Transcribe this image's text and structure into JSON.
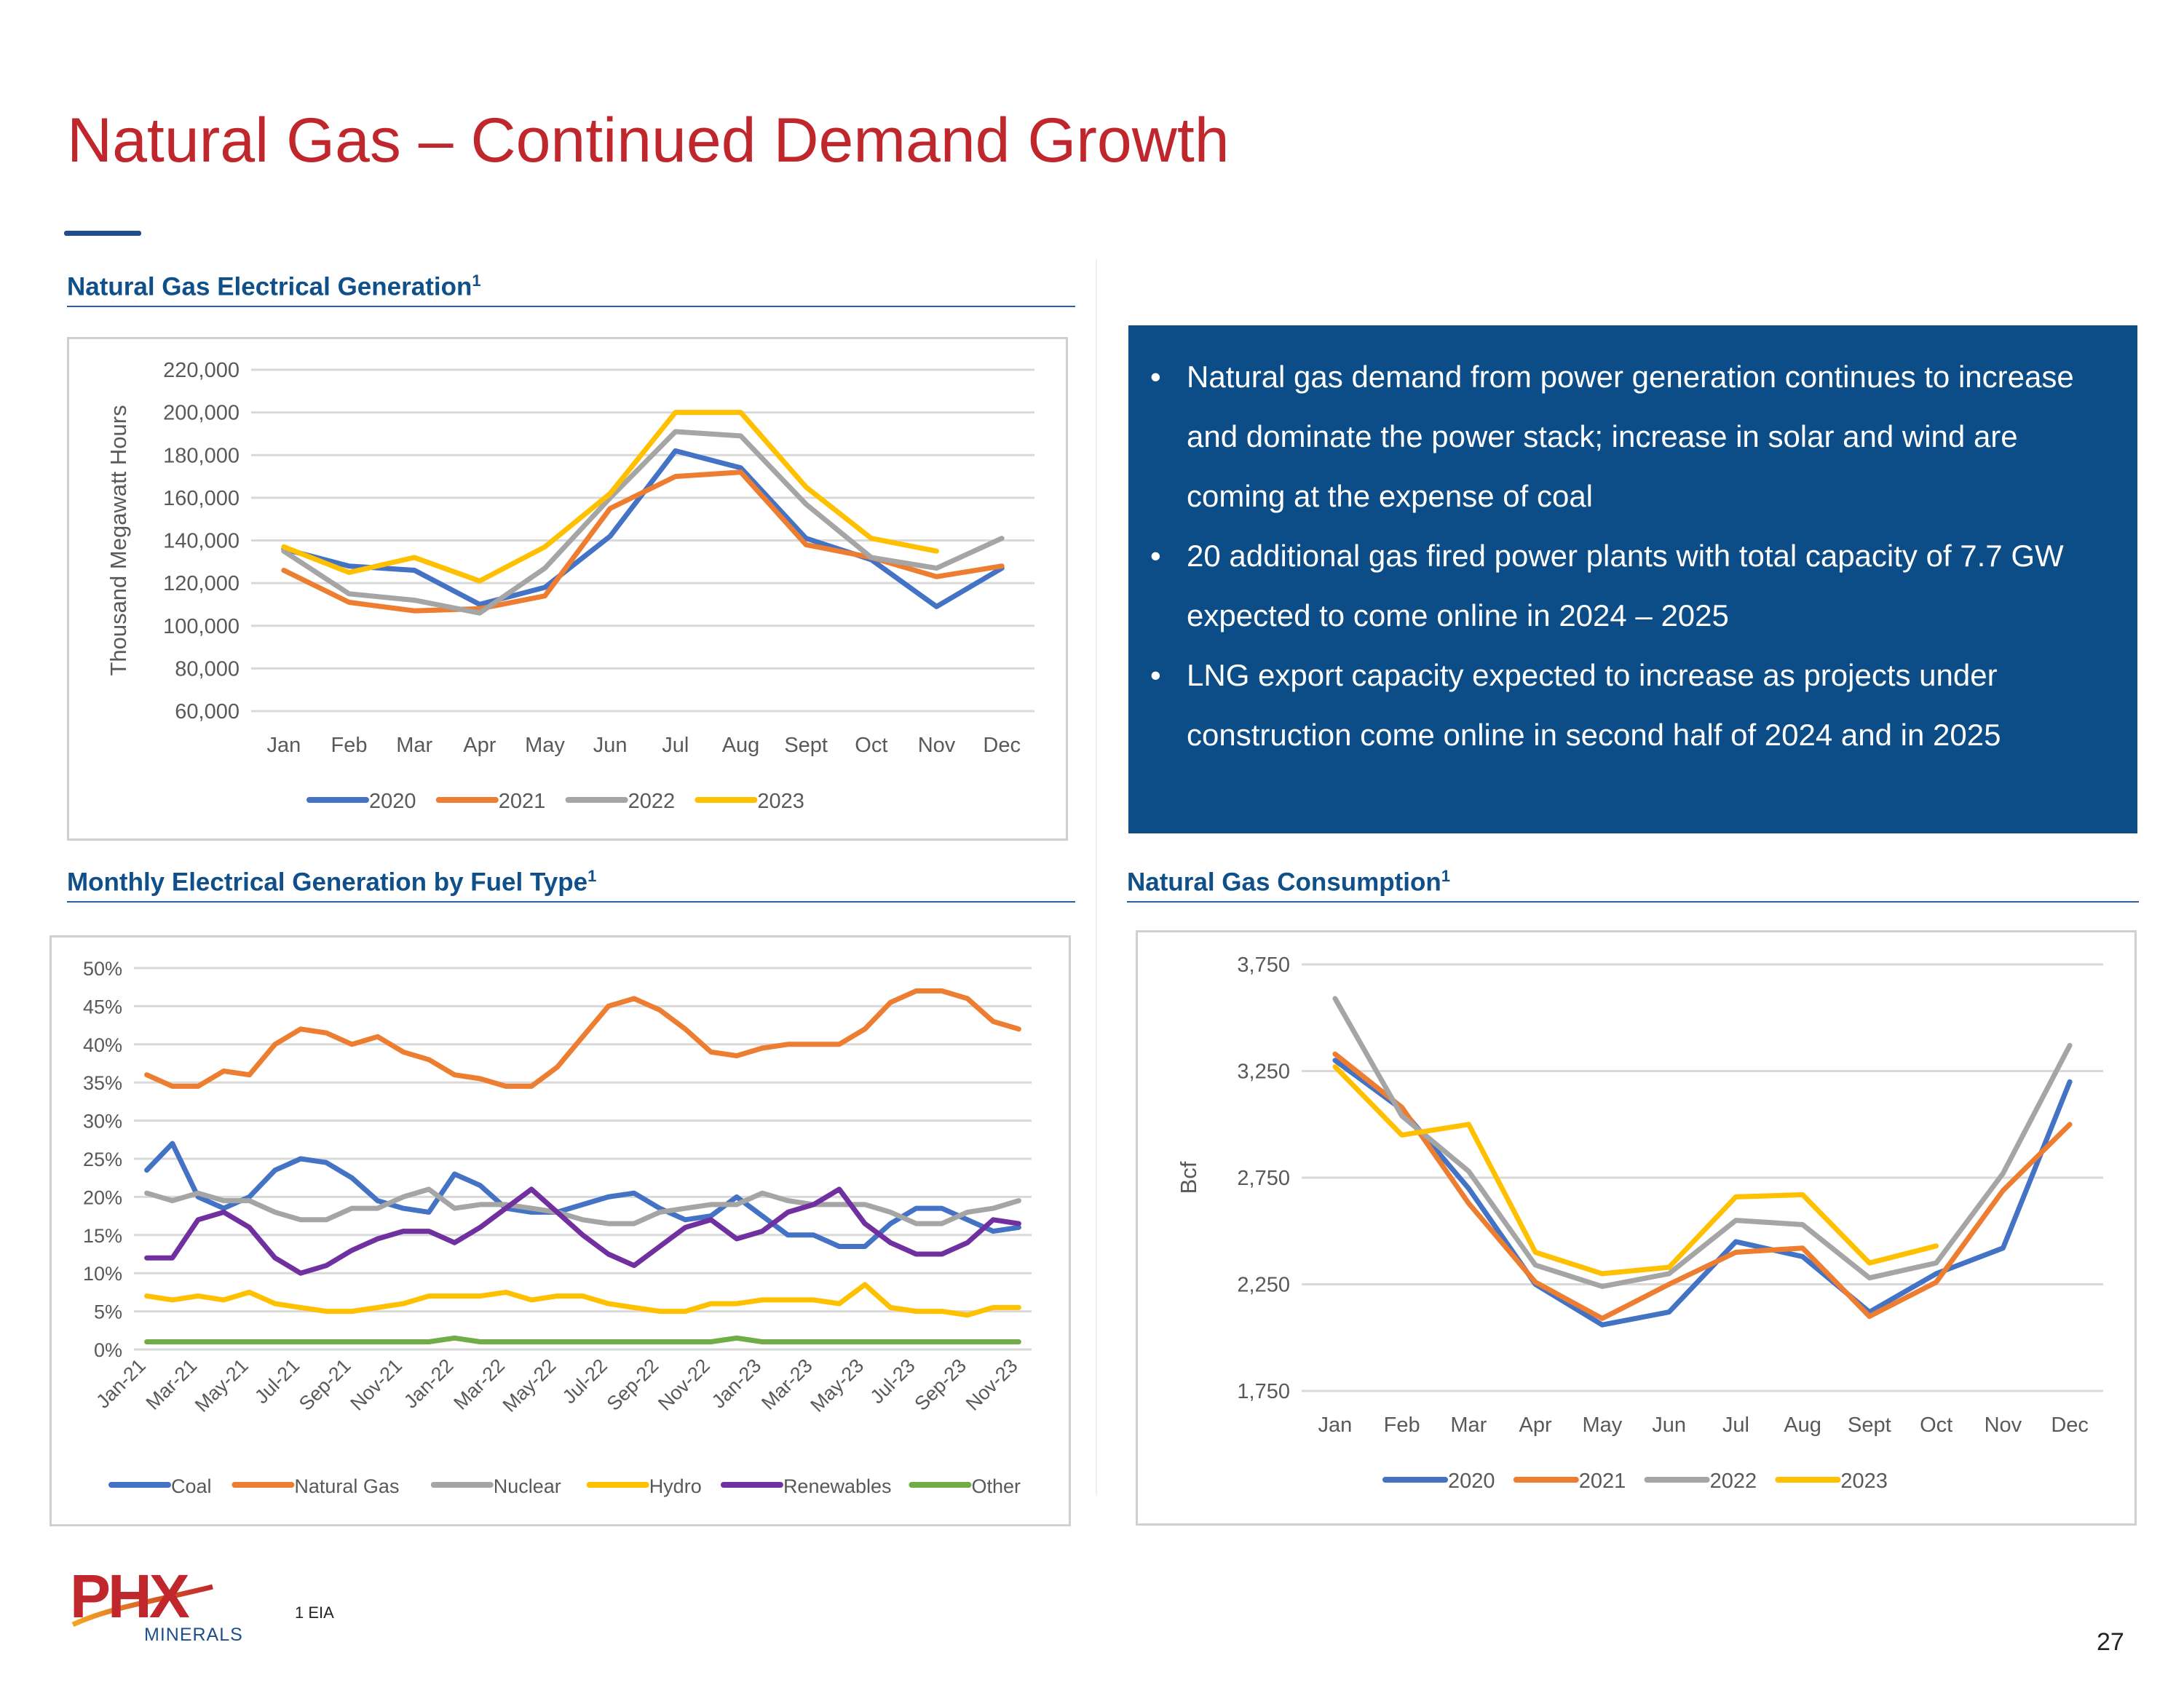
{
  "page": {
    "title": "Natural Gas – Continued Demand Growth",
    "page_number": "27",
    "footnote": "1 EIA",
    "logo_text": "PHX",
    "logo_subtext": "MINERALS",
    "colors": {
      "title": "#c0272d",
      "section": "#0f4f8a",
      "callout_bg": "#0c4d87"
    }
  },
  "sections": {
    "gen": {
      "title": "Natural Gas Electrical Generation",
      "sup": "1"
    },
    "fuel": {
      "title": "Monthly Electrical Generation by Fuel Type",
      "sup": "1"
    },
    "cons": {
      "title": "Natural Gas Consumption",
      "sup": "1"
    }
  },
  "callout": {
    "bullets": [
      "Natural gas demand from power generation continues to increase and dominate the power stack; increase in solar and wind are coming at the expense of coal",
      "20 additional gas fired power plants with total capacity of 7.7 GW expected to come online in 2024 – 2025",
      "LNG export capacity expected to increase as projects under construction come online in second half of 2024 and in 2025"
    ]
  },
  "chart_data": [
    {
      "id": "gen",
      "type": "line",
      "title": "",
      "xlabel": "",
      "ylabel": "Thousand Megawatt Hours",
      "categories": [
        "Jan",
        "Feb",
        "Mar",
        "Apr",
        "May",
        "Jun",
        "Jul",
        "Aug",
        "Sept",
        "Oct",
        "Nov",
        "Dec"
      ],
      "yticks": [
        "60,000",
        "80,000",
        "100,000",
        "120,000",
        "140,000",
        "160,000",
        "180,000",
        "200,000",
        "220,000"
      ],
      "ylim": [
        60000,
        220000
      ],
      "grid": true,
      "legend_position": "bottom",
      "series": [
        {
          "name": "2020",
          "color": "#4472c4",
          "values": [
            136000,
            128000,
            126000,
            110000,
            118000,
            142000,
            182000,
            174000,
            141000,
            131000,
            109000,
            127000
          ]
        },
        {
          "name": "2021",
          "color": "#ed7d31",
          "values": [
            126000,
            111000,
            107000,
            108000,
            114000,
            155000,
            170000,
            172000,
            138000,
            132000,
            123000,
            128000
          ]
        },
        {
          "name": "2022",
          "color": "#a5a5a5",
          "values": [
            135000,
            115000,
            112000,
            106000,
            127000,
            160000,
            191000,
            189000,
            157000,
            132000,
            127000,
            141000
          ]
        },
        {
          "name": "2023",
          "color": "#ffc000",
          "values": [
            137000,
            125000,
            132000,
            121000,
            137000,
            162000,
            200000,
            200000,
            165000,
            141000,
            135000,
            null
          ]
        }
      ]
    },
    {
      "id": "fuel",
      "type": "line",
      "title": "",
      "xlabel": "",
      "ylabel": "",
      "categories": [
        "Jan-21",
        "Feb-21",
        "Mar-21",
        "Apr-21",
        "May-21",
        "Jun-21",
        "Jul-21",
        "Aug-21",
        "Sep-21",
        "Oct-21",
        "Nov-21",
        "Dec-21",
        "Jan-22",
        "Feb-22",
        "Mar-22",
        "Apr-22",
        "May-22",
        "Jun-22",
        "Jul-22",
        "Aug-22",
        "Sep-22",
        "Oct-22",
        "Nov-22",
        "Dec-22",
        "Jan-23",
        "Feb-23",
        "Mar-23",
        "Apr-23",
        "May-23",
        "Jun-23",
        "Jul-23",
        "Aug-23",
        "Sep-23",
        "Oct-23",
        "Nov-23"
      ],
      "xtick_labels": [
        "Jan-21",
        "Mar-21",
        "May-21",
        "Jul-21",
        "Sep-21",
        "Nov-21",
        "Jan-22",
        "Mar-22",
        "May-22",
        "Jul-22",
        "Sep-22",
        "Nov-22",
        "Jan-23",
        "Mar-23",
        "May-23",
        "Jul-23",
        "Sep-23",
        "Nov-23"
      ],
      "yticks": [
        "0%",
        "5%",
        "10%",
        "15%",
        "20%",
        "25%",
        "30%",
        "35%",
        "40%",
        "45%",
        "50%"
      ],
      "ylim": [
        0,
        50
      ],
      "grid": true,
      "legend_position": "bottom",
      "series": [
        {
          "name": "Coal",
          "color": "#4472c4",
          "values": [
            23.5,
            27,
            20,
            18.5,
            20,
            23.5,
            25,
            24.5,
            22.5,
            19.5,
            18.5,
            18,
            23,
            21.5,
            18.5,
            18,
            18,
            19,
            20,
            20.5,
            18.5,
            17,
            17.5,
            20,
            17.5,
            15,
            15,
            13.5,
            13.5,
            16.5,
            18.5,
            18.5,
            17,
            15.5,
            16
          ]
        },
        {
          "name": "Natural Gas",
          "color": "#ed7d31",
          "values": [
            36,
            34.5,
            34.5,
            36.5,
            36,
            40,
            42,
            41.5,
            40,
            41,
            39,
            38,
            36,
            35.5,
            34.5,
            34.5,
            37,
            41,
            45,
            46,
            44.5,
            42,
            39,
            38.5,
            39.5,
            40,
            40,
            40,
            42,
            45.5,
            47,
            47,
            46,
            43,
            42
          ]
        },
        {
          "name": "Nuclear",
          "color": "#a5a5a5",
          "values": [
            20.5,
            19.5,
            20.5,
            19.5,
            19.5,
            18,
            17,
            17,
            18.5,
            18.5,
            20,
            21,
            18.5,
            19,
            19,
            18.5,
            18,
            17,
            16.5,
            16.5,
            18,
            18.5,
            19,
            19,
            20.5,
            19.5,
            19,
            19,
            19,
            18,
            16.5,
            16.5,
            18,
            18.5,
            19.5
          ]
        },
        {
          "name": "Hydro",
          "color": "#ffc000",
          "values": [
            7,
            6.5,
            7,
            6.5,
            7.5,
            6,
            5.5,
            5,
            5,
            5.5,
            6,
            7,
            7,
            7,
            7.5,
            6.5,
            7,
            7,
            6,
            5.5,
            5,
            5,
            6,
            6,
            6.5,
            6.5,
            6.5,
            6,
            8.5,
            5.5,
            5,
            5,
            4.5,
            5.5,
            5.5
          ]
        },
        {
          "name": "Renewables",
          "color": "#7030a0",
          "values": [
            12,
            12,
            17,
            18,
            16,
            12,
            10,
            11,
            13,
            14.5,
            15.5,
            15.5,
            14,
            16,
            18.5,
            21,
            18,
            15,
            12.5,
            11,
            13.5,
            16,
            17,
            14.5,
            15.5,
            18,
            19,
            21,
            16.5,
            14,
            12.5,
            12.5,
            14,
            17,
            16.5
          ]
        },
        {
          "name": "Other",
          "color": "#70ad47",
          "values": [
            1,
            1,
            1,
            1,
            1,
            1,
            1,
            1,
            1,
            1,
            1,
            1,
            1.5,
            1,
            1,
            1,
            1,
            1,
            1,
            1,
            1,
            1,
            1,
            1.5,
            1,
            1,
            1,
            1,
            1,
            1,
            1,
            1,
            1,
            1,
            1
          ]
        }
      ]
    },
    {
      "id": "cons",
      "type": "line",
      "title": "",
      "xlabel": "",
      "ylabel": "Bcf",
      "categories": [
        "Jan",
        "Feb",
        "Mar",
        "Apr",
        "May",
        "Jun",
        "Jul",
        "Aug",
        "Sept",
        "Oct",
        "Nov",
        "Dec"
      ],
      "yticks": [
        "1,750",
        "2,250",
        "2,750",
        "3,250",
        "3,750"
      ],
      "ylim": [
        1750,
        3750
      ],
      "grid": true,
      "legend_position": "bottom",
      "series": [
        {
          "name": "2020",
          "color": "#4472c4",
          "values": [
            3300,
            3070,
            2700,
            2250,
            2060,
            2120,
            2450,
            2380,
            2120,
            2300,
            2420,
            3200
          ]
        },
        {
          "name": "2021",
          "color": "#ed7d31",
          "values": [
            3330,
            3080,
            2630,
            2260,
            2090,
            2250,
            2400,
            2420,
            2100,
            2260,
            2690,
            3000
          ]
        },
        {
          "name": "2022",
          "color": "#a5a5a5",
          "values": [
            3590,
            3040,
            2780,
            2340,
            2240,
            2300,
            2550,
            2530,
            2280,
            2350,
            2770,
            3370
          ]
        },
        {
          "name": "2023",
          "color": "#ffc000",
          "values": [
            3270,
            2950,
            3000,
            2400,
            2300,
            2330,
            2660,
            2670,
            2350,
            2430,
            null,
            null
          ]
        }
      ]
    }
  ]
}
